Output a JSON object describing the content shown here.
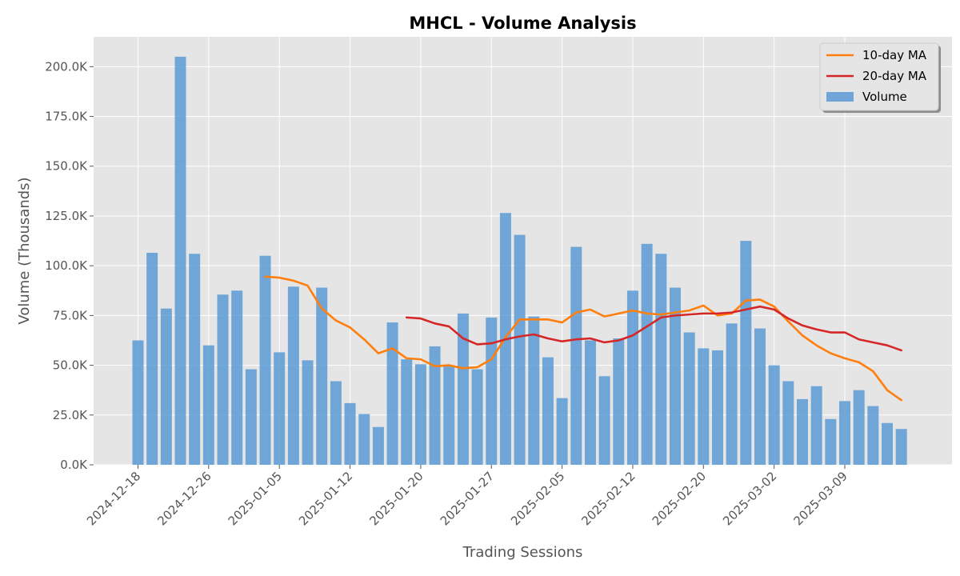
{
  "chart_data": {
    "type": "bar",
    "title": "MHCL - Volume Analysis",
    "xlabel": "Trading Sessions",
    "ylabel": "Volume (Thousands)",
    "ylim": [
      0,
      215000
    ],
    "grid": true,
    "legend_position": "top-right",
    "x_ticks": [
      {
        "index": 0,
        "label": "2024-12-18"
      },
      {
        "index": 5,
        "label": "2024-12-26"
      },
      {
        "index": 10,
        "label": "2025-01-05"
      },
      {
        "index": 15,
        "label": "2025-01-12"
      },
      {
        "index": 20,
        "label": "2025-01-20"
      },
      {
        "index": 25,
        "label": "2025-01-27"
      },
      {
        "index": 30,
        "label": "2025-02-05"
      },
      {
        "index": 35,
        "label": "2025-02-12"
      },
      {
        "index": 40,
        "label": "2025-02-20"
      },
      {
        "index": 45,
        "label": "2025-03-02"
      },
      {
        "index": 50,
        "label": "2025-03-09"
      }
    ],
    "y_ticks": [
      {
        "value": 0,
        "label": "0.0K"
      },
      {
        "value": 25000,
        "label": "25.0K"
      },
      {
        "value": 50000,
        "label": "50.0K"
      },
      {
        "value": 75000,
        "label": "75.0K"
      },
      {
        "value": 100000,
        "label": "100.0K"
      },
      {
        "value": 125000,
        "label": "125.0K"
      },
      {
        "value": 150000,
        "label": "150.0K"
      },
      {
        "value": 175000,
        "label": "175.0K"
      },
      {
        "value": 200000,
        "label": "200.0K"
      }
    ],
    "series": [
      {
        "name": "Volume",
        "type": "bar",
        "color": "#5b9bd5",
        "values": [
          62500,
          106500,
          78500,
          205000,
          106000,
          60000,
          85500,
          87500,
          48000,
          105000,
          56500,
          89500,
          52500,
          89000,
          42000,
          31000,
          25500,
          19000,
          71500,
          53000,
          50500,
          59500,
          50000,
          76000,
          48000,
          74000,
          126500,
          115500,
          74500,
          54000,
          33500,
          109500,
          62500,
          44500,
          63500,
          87500,
          111000,
          106000,
          89000,
          66500,
          58500,
          57500,
          71000,
          112500,
          68500,
          50000,
          42000,
          33000,
          39500,
          23000,
          32000,
          37500,
          29500,
          21000,
          18000
        ]
      },
      {
        "name": "10-day MA",
        "type": "line",
        "color": "#ff7f0e",
        "values": [
          null,
          null,
          null,
          null,
          null,
          null,
          null,
          null,
          null,
          94500,
          94000,
          92500,
          90000,
          78500,
          72500,
          69000,
          63000,
          56000,
          58500,
          53500,
          53000,
          49500,
          50000,
          48500,
          49000,
          53000,
          64000,
          73000,
          73000,
          73000,
          71500,
          76500,
          78000,
          74500,
          76000,
          77500,
          76000,
          75500,
          76500,
          77500,
          80000,
          75000,
          76000,
          82500,
          83000,
          79500,
          72000,
          65000,
          60000,
          56000,
          53500,
          51500,
          47000,
          37500,
          32500
        ]
      },
      {
        "name": "20-day MA",
        "type": "line",
        "color": "#d62728",
        "values": [
          null,
          null,
          null,
          null,
          null,
          null,
          null,
          null,
          null,
          null,
          null,
          null,
          null,
          null,
          null,
          null,
          null,
          null,
          null,
          74000,
          73500,
          71000,
          69500,
          63500,
          60500,
          61000,
          63000,
          64500,
          65500,
          63500,
          62000,
          63000,
          63500,
          61500,
          62500,
          65000,
          69500,
          74000,
          75000,
          75500,
          76000,
          76000,
          76500,
          78000,
          79500,
          78000,
          73500,
          70000,
          68000,
          66500,
          66500,
          63000,
          61500,
          60000,
          57500
        ]
      }
    ]
  }
}
